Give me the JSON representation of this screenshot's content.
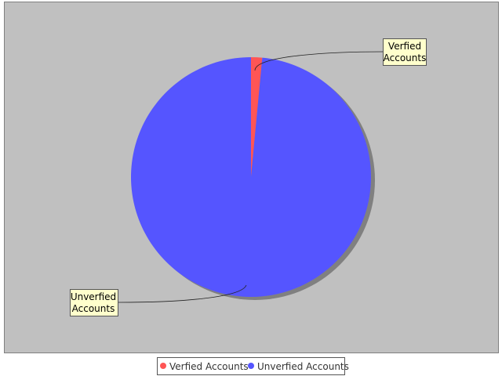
{
  "chart_data": {
    "type": "pie",
    "title": "",
    "categories": [
      "Verfied Accounts",
      "Unverfied Accounts"
    ],
    "values": [
      1.5,
      98.5
    ],
    "colors": [
      "#ff5555",
      "#5555ff"
    ],
    "labels": {
      "verified": [
        "Verfied",
        "Accounts"
      ],
      "unverified": [
        "Unverfied",
        "Accounts"
      ]
    },
    "legend": {
      "position": "bottom",
      "items": [
        {
          "label": "Verfied Accounts",
          "color": "#ff5555"
        },
        {
          "label": "Unverfied Accounts",
          "color": "#5555ff"
        }
      ]
    },
    "plot_background": "#c0c0c0"
  }
}
